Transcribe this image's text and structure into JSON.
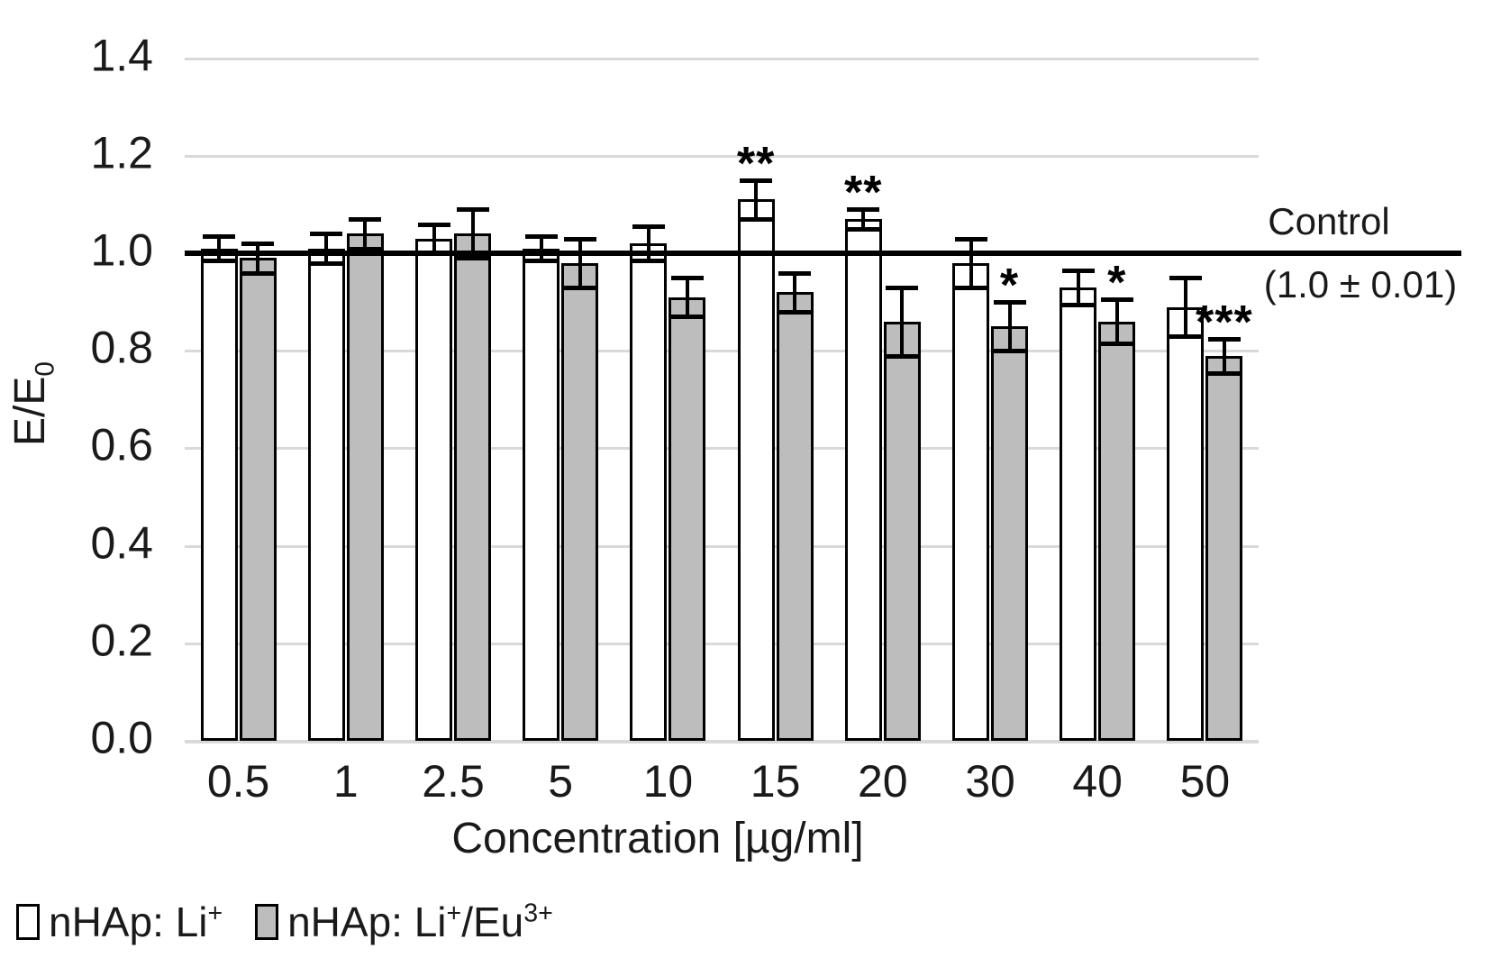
{
  "figure": {
    "y_axis": {
      "title_text": "E/E",
      "title_sub": "0",
      "ticks": [
        "0.0",
        "0.2",
        "0.4",
        "0.6",
        "0.8",
        "1.0",
        "1.2",
        "1.4"
      ]
    },
    "x_axis": {
      "title": "Concentration [µg/ml]"
    },
    "control": {
      "label_line1": "Control",
      "label_line2": "(1.0 ± 0.01)"
    },
    "legend": {
      "items": [
        {
          "text": "nHAp: Li",
          "sup": "+",
          "text2": "",
          "sup2": "",
          "fill": "#ffffff"
        },
        {
          "text": "nHAp: Li",
          "sup": "+",
          "text2": "/Eu",
          "sup2": "3+",
          "fill": "#bdbdbd"
        }
      ]
    }
  },
  "chart_data": {
    "type": "bar",
    "title": "",
    "xlabel": "Concentration [µg/ml]",
    "ylabel": "E/E0",
    "ylim": [
      0.0,
      1.4
    ],
    "ytick_step": 0.2,
    "grid": true,
    "legend_position": "bottom-left",
    "categories": [
      "0.5",
      "1",
      "2.5",
      "5",
      "10",
      "15",
      "20",
      "30",
      "40",
      "50"
    ],
    "series": [
      {
        "name": "nHAp: Li+",
        "fill": "#ffffff",
        "values": [
          1.01,
          1.01,
          1.03,
          1.01,
          1.02,
          1.11,
          1.07,
          0.98,
          0.93,
          0.89
        ],
        "errors": [
          0.025,
          0.03,
          0.03,
          0.025,
          0.035,
          0.04,
          0.02,
          0.05,
          0.035,
          0.06
        ],
        "sig": [
          "",
          "",
          "",
          "",
          "",
          "**",
          "**",
          "",
          "",
          ""
        ]
      },
      {
        "name": "nHAp: Li+/Eu3+",
        "fill": "#bdbdbd",
        "values": [
          0.99,
          1.04,
          1.04,
          0.98,
          0.91,
          0.92,
          0.86,
          0.85,
          0.86,
          0.79
        ],
        "errors": [
          0.03,
          0.03,
          0.05,
          0.05,
          0.04,
          0.04,
          0.07,
          0.05,
          0.045,
          0.035
        ],
        "sig": [
          "",
          "",
          "",
          "",
          "",
          "",
          "",
          "*",
          "*",
          "***"
        ]
      }
    ],
    "control_line": {
      "value": 1.0,
      "label": "Control (1.0 ± 0.01)"
    }
  }
}
